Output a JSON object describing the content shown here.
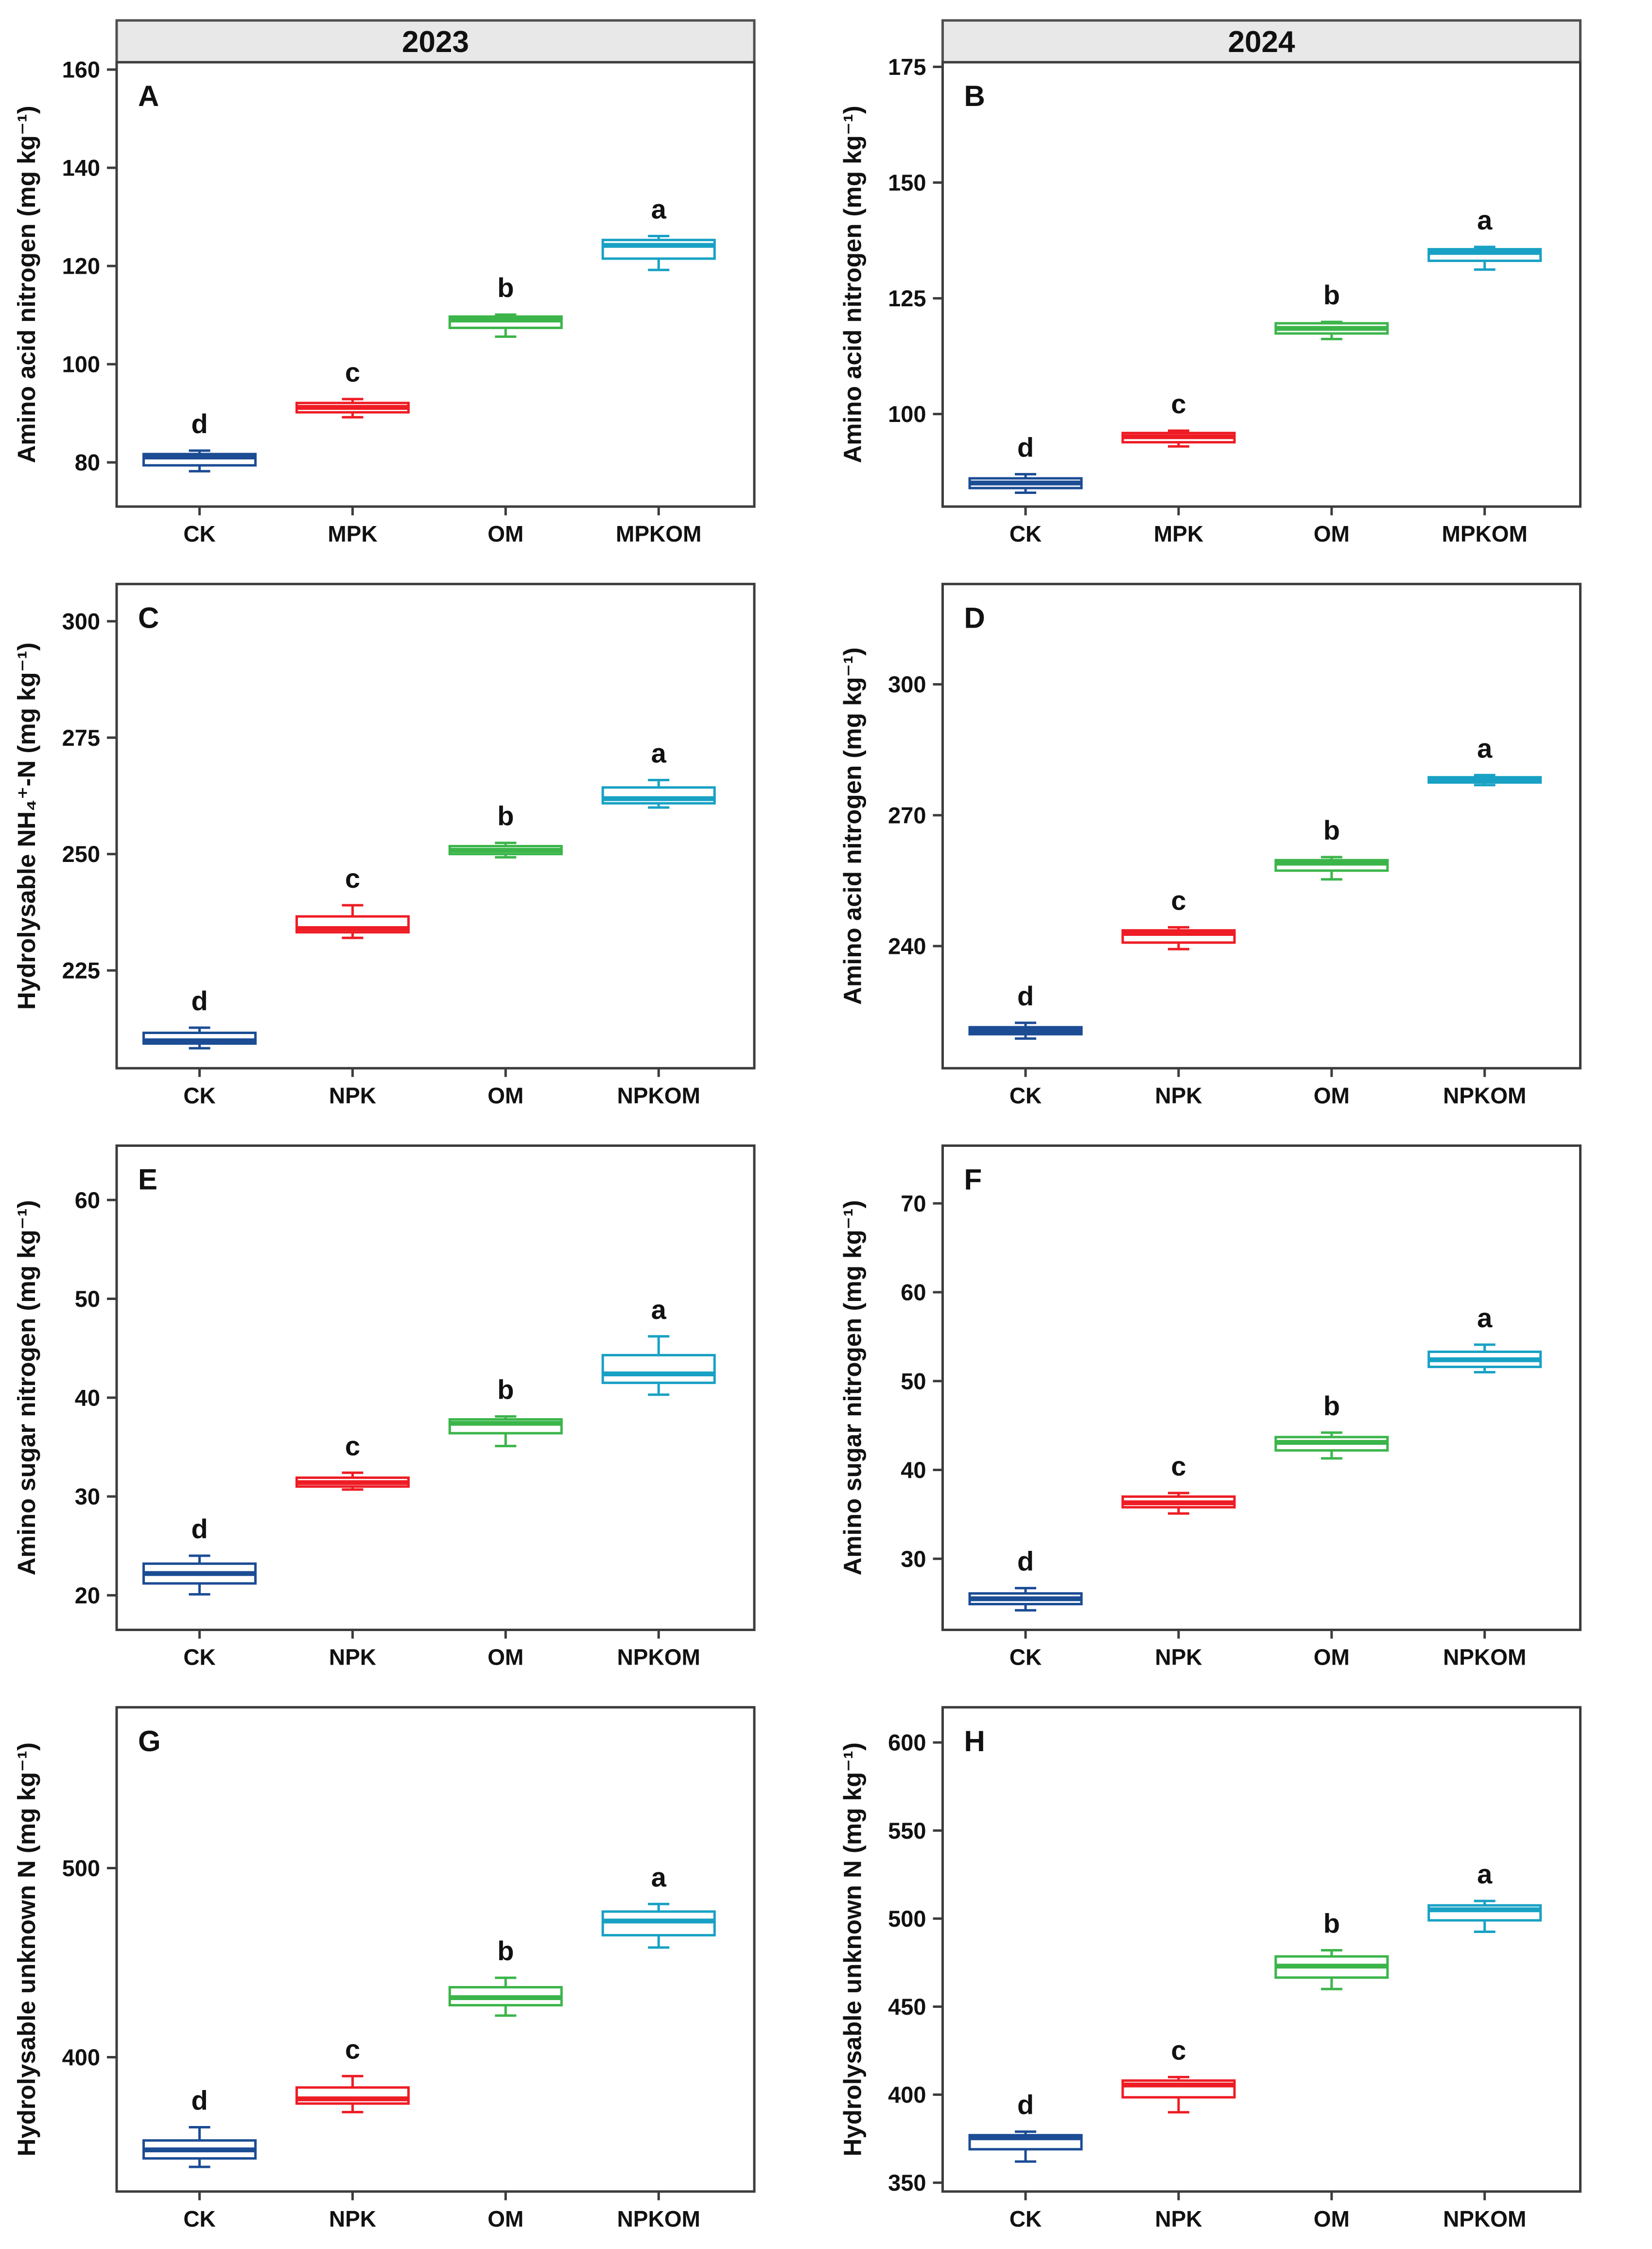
{
  "figure": {
    "col_headers": [
      "2023",
      "2024"
    ],
    "header_fill": "#e8e8e8",
    "header_border": "#4f4f4f",
    "axis_color": "#3c3c3c",
    "tick_label_color": "#111111"
  },
  "palette": {
    "CK": "#1b4c94",
    "NPK": "#ee1c24",
    "MPK": "#ee1c24",
    "OM": "#3bb54a",
    "NPKOM": "#18a1c4",
    "MPKOM": "#18a1c4"
  },
  "chart_data": [
    {
      "panel": "A",
      "type": "box",
      "header": "2023",
      "ylabel": "Amino acid nitrogen (mg kg⁻¹)",
      "ylim": [
        71,
        161.5
      ],
      "yticks": [
        80,
        100,
        120,
        140,
        160
      ],
      "categories": [
        "CK",
        "MPK",
        "OM",
        "MPKOM"
      ],
      "boxes": [
        {
          "category": "CK",
          "low": 78.2,
          "q1": 79.4,
          "median": 81.1,
          "q3": 81.7,
          "high": 82.4,
          "letter": "d"
        },
        {
          "category": "MPK",
          "low": 89.2,
          "q1": 90.2,
          "median": 91.2,
          "q3": 92.1,
          "high": 92.9,
          "letter": "c"
        },
        {
          "category": "OM",
          "low": 105.6,
          "q1": 107.4,
          "median": 109.0,
          "q3": 109.7,
          "high": 110.1,
          "letter": "b"
        },
        {
          "category": "MPKOM",
          "low": 119.2,
          "q1": 121.5,
          "median": 124.2,
          "q3": 125.3,
          "high": 126.1,
          "letter": "a"
        }
      ]
    },
    {
      "panel": "B",
      "type": "box",
      "header": "2024",
      "ylabel": "Amino acid nitrogen (mg kg⁻¹)",
      "ylim": [
        80,
        176
      ],
      "yticks": [
        100,
        125,
        150,
        175
      ],
      "categories": [
        "CK",
        "MPK",
        "OM",
        "MPKOM"
      ],
      "boxes": [
        {
          "category": "CK",
          "low": 83.0,
          "q1": 84.0,
          "median": 85.1,
          "q3": 86.1,
          "high": 87.0,
          "letter": "d"
        },
        {
          "category": "MPK",
          "low": 93.0,
          "q1": 93.9,
          "median": 95.1,
          "q3": 95.9,
          "high": 96.4,
          "letter": "c"
        },
        {
          "category": "OM",
          "low": 116.2,
          "q1": 117.4,
          "median": 118.5,
          "q3": 119.6,
          "high": 119.9,
          "letter": "b"
        },
        {
          "category": "MPKOM",
          "low": 131.2,
          "q1": 133.1,
          "median": 134.9,
          "q3": 135.6,
          "high": 136.1,
          "letter": "a"
        }
      ]
    },
    {
      "panel": "C",
      "type": "box",
      "header": null,
      "ylabel": "Hydrolysable NH₄⁺-N (mg kg⁻¹)",
      "ylim": [
        204,
        308
      ],
      "yticks": [
        225,
        250,
        275,
        300
      ],
      "categories": [
        "CK",
        "NPK",
        "OM",
        "NPKOM"
      ],
      "boxes": [
        {
          "category": "CK",
          "low": 208.3,
          "q1": 209.3,
          "median": 209.9,
          "q3": 211.6,
          "high": 212.7,
          "letter": "d"
        },
        {
          "category": "NPK",
          "low": 232.0,
          "q1": 233.2,
          "median": 234.0,
          "q3": 236.6,
          "high": 239.0,
          "letter": "c"
        },
        {
          "category": "OM",
          "low": 249.3,
          "q1": 250.0,
          "median": 250.8,
          "q3": 251.7,
          "high": 252.4,
          "letter": "b"
        },
        {
          "category": "NPKOM",
          "low": 260.0,
          "q1": 260.9,
          "median": 261.9,
          "q3": 264.3,
          "high": 265.9,
          "letter": "a"
        }
      ]
    },
    {
      "panel": "D",
      "type": "box",
      "header": null,
      "ylabel": "Amino acid nitrogen (mg kg⁻¹)",
      "ylim": [
        212,
        323
      ],
      "yticks": [
        240,
        270,
        300
      ],
      "categories": [
        "CK",
        "NPK",
        "OM",
        "NPKOM"
      ],
      "boxes": [
        {
          "category": "CK",
          "low": 218.8,
          "q1": 219.8,
          "median": 220.6,
          "q3": 221.4,
          "high": 222.4,
          "letter": "d"
        },
        {
          "category": "NPK",
          "low": 239.3,
          "q1": 240.8,
          "median": 242.9,
          "q3": 243.6,
          "high": 244.3,
          "letter": "c"
        },
        {
          "category": "OM",
          "low": 255.3,
          "q1": 257.3,
          "median": 259.0,
          "q3": 259.7,
          "high": 260.4,
          "letter": "b"
        },
        {
          "category": "NPKOM",
          "low": 276.9,
          "q1": 277.5,
          "median": 278.1,
          "q3": 278.7,
          "high": 279.2,
          "letter": "a"
        }
      ]
    },
    {
      "panel": "E",
      "type": "box",
      "header": null,
      "ylabel": "Amino sugar nitrogen (mg kg⁻¹)",
      "ylim": [
        16.5,
        65.5
      ],
      "yticks": [
        20,
        30,
        40,
        50,
        60
      ],
      "categories": [
        "CK",
        "NPK",
        "OM",
        "NPKOM"
      ],
      "boxes": [
        {
          "category": "CK",
          "low": 20.1,
          "q1": 21.2,
          "median": 22.2,
          "q3": 23.2,
          "high": 24.0,
          "letter": "d"
        },
        {
          "category": "NPK",
          "low": 30.7,
          "q1": 31.0,
          "median": 31.4,
          "q3": 31.9,
          "high": 32.4,
          "letter": "c"
        },
        {
          "category": "OM",
          "low": 35.1,
          "q1": 36.4,
          "median": 37.4,
          "q3": 37.8,
          "high": 38.1,
          "letter": "b"
        },
        {
          "category": "NPKOM",
          "low": 40.3,
          "q1": 41.5,
          "median": 42.4,
          "q3": 44.3,
          "high": 46.2,
          "letter": "a"
        }
      ]
    },
    {
      "panel": "F",
      "type": "box",
      "header": null,
      "ylabel": "Amino sugar nitrogen (mg kg⁻¹)",
      "ylim": [
        22,
        76.5
      ],
      "yticks": [
        30,
        40,
        50,
        60,
        70
      ],
      "categories": [
        "CK",
        "NPK",
        "OM",
        "NPKOM"
      ],
      "boxes": [
        {
          "category": "CK",
          "low": 24.2,
          "q1": 24.9,
          "median": 25.5,
          "q3": 26.1,
          "high": 26.7,
          "letter": "d"
        },
        {
          "category": "NPK",
          "low": 35.1,
          "q1": 35.8,
          "median": 36.3,
          "q3": 37.0,
          "high": 37.4,
          "letter": "c"
        },
        {
          "category": "OM",
          "low": 41.3,
          "q1": 42.2,
          "median": 43.1,
          "q3": 43.7,
          "high": 44.2,
          "letter": "b"
        },
        {
          "category": "NPKOM",
          "low": 51.0,
          "q1": 51.6,
          "median": 52.4,
          "q3": 53.3,
          "high": 54.1,
          "letter": "a"
        }
      ]
    },
    {
      "panel": "G",
      "type": "box",
      "header": null,
      "ylabel": "Hydrolysable unknown N (mg kg⁻¹)",
      "ylim": [
        329,
        585
      ],
      "yticks": [
        400,
        500
      ],
      "categories": [
        "CK",
        "NPK",
        "OM",
        "NPKOM"
      ],
      "boxes": [
        {
          "category": "CK",
          "low": 342,
          "q1": 346.5,
          "median": 351,
          "q3": 356,
          "high": 363,
          "letter": "d"
        },
        {
          "category": "NPK",
          "low": 371,
          "q1": 375.5,
          "median": 378,
          "q3": 384,
          "high": 390,
          "letter": "c"
        },
        {
          "category": "OM",
          "low": 422,
          "q1": 427.5,
          "median": 431.5,
          "q3": 437,
          "high": 442,
          "letter": "b"
        },
        {
          "category": "NPKOM",
          "low": 458,
          "q1": 464.5,
          "median": 472,
          "q3": 477,
          "high": 481,
          "letter": "a"
        }
      ]
    },
    {
      "panel": "H",
      "type": "box",
      "header": null,
      "ylabel": "Hydrolysable unknown N (mg kg⁻¹)",
      "ylim": [
        345,
        620
      ],
      "yticks": [
        350,
        400,
        450,
        500,
        550,
        600
      ],
      "categories": [
        "CK",
        "NPK",
        "OM",
        "NPKOM"
      ],
      "boxes": [
        {
          "category": "CK",
          "low": 362,
          "q1": 369,
          "median": 375.5,
          "q3": 377,
          "high": 379,
          "letter": "d"
        },
        {
          "category": "NPK",
          "low": 390,
          "q1": 398.5,
          "median": 405.5,
          "q3": 408,
          "high": 410,
          "letter": "c"
        },
        {
          "category": "OM",
          "low": 460,
          "q1": 466.5,
          "median": 473,
          "q3": 478.5,
          "high": 482,
          "letter": "b"
        },
        {
          "category": "NPKOM",
          "low": 492.5,
          "q1": 499,
          "median": 505,
          "q3": 507.5,
          "high": 510,
          "letter": "a"
        }
      ]
    }
  ]
}
